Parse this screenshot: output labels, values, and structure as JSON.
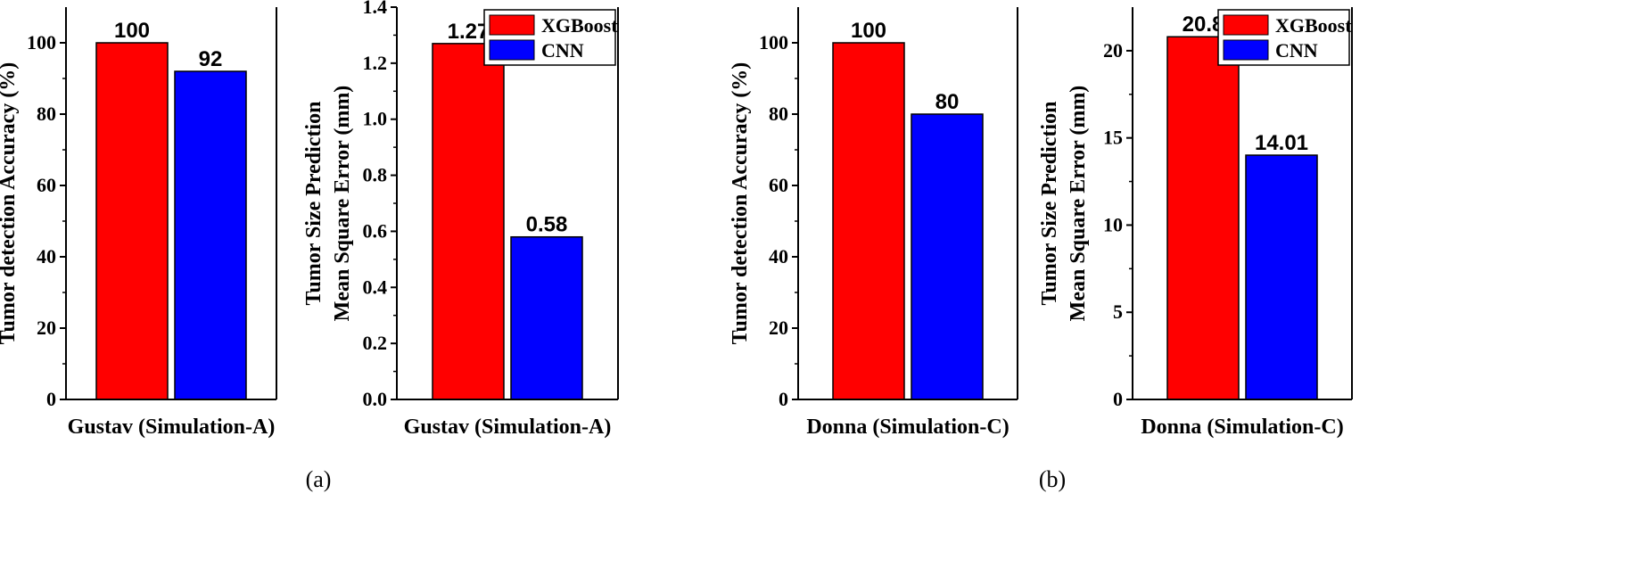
{
  "chart_data": [
    {
      "type": "bar",
      "categories": [
        "Gustav (Simulation-A)"
      ],
      "series": [
        {
          "name": "XGBoost",
          "values": [
            100
          ],
          "color": "#ff0000",
          "label": "100"
        },
        {
          "name": "CNN",
          "values": [
            92
          ],
          "color": "#0000ff",
          "label": "92"
        }
      ],
      "xlabel": "Gustav (Simulation-A)",
      "ylabel": [
        "Tumor detection Accuracy (%)"
      ],
      "ylim": [
        0,
        110
      ],
      "yticks": [
        "0",
        "20",
        "40",
        "60",
        "80",
        "100"
      ],
      "legend": false
    },
    {
      "type": "bar",
      "categories": [
        "Gustav (Simulation-A)"
      ],
      "series": [
        {
          "name": "XGBoost",
          "values": [
            1.27
          ],
          "color": "#ff0000",
          "label": "1.27"
        },
        {
          "name": "CNN",
          "values": [
            0.58
          ],
          "color": "#0000ff",
          "label": "0.58"
        }
      ],
      "xlabel": "Gustav (Simulation-A)",
      "ylabel": [
        "Tumor Size Prediction",
        "Mean Square Error (mm)"
      ],
      "ylim": [
        0,
        1.4
      ],
      "yticks": [
        "0.0",
        "0.2",
        "0.4",
        "0.6",
        "0.8",
        "1.0",
        "1.2",
        "1.4"
      ],
      "legend": true
    },
    {
      "type": "bar",
      "categories": [
        "Donna (Simulation-C)"
      ],
      "series": [
        {
          "name": "XGBoost",
          "values": [
            100
          ],
          "color": "#ff0000",
          "label": "100"
        },
        {
          "name": "CNN",
          "values": [
            80
          ],
          "color": "#0000ff",
          "label": "80"
        }
      ],
      "xlabel": "Donna (Simulation-C)",
      "ylabel": [
        "Tumor detection Accuracy (%)"
      ],
      "ylim": [
        0,
        110
      ],
      "yticks": [
        "0",
        "20",
        "40",
        "60",
        "80",
        "100"
      ],
      "legend": false
    },
    {
      "type": "bar",
      "categories": [
        "Donna (Simulation-C)"
      ],
      "series": [
        {
          "name": "XGBoost",
          "values": [
            20.8
          ],
          "color": "#ff0000",
          "label": "20.8"
        },
        {
          "name": "CNN",
          "values": [
            14.01
          ],
          "color": "#0000ff",
          "label": "14.01"
        }
      ],
      "xlabel": "Donna (Simulation-C)",
      "ylabel": [
        "Tumor Size Prediction",
        "Mean Square Error (mm)"
      ],
      "ylim": [
        0,
        22.5
      ],
      "yticks": [
        "0",
        "5",
        "10",
        "15",
        "20"
      ],
      "legend": true
    }
  ],
  "panel_labels": [
    "(a)",
    "(b)"
  ]
}
